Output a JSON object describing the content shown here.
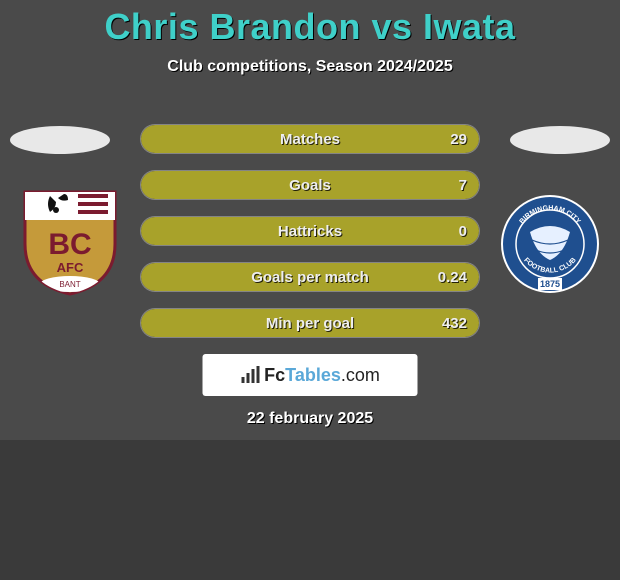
{
  "title": "Chris Brandon vs Iwata",
  "title_color": "#3fd0c9",
  "subtitle": "Club competitions, Season 2024/2025",
  "date": "22 february 2025",
  "background_color": "#4a4a4a",
  "bar_fill_color": "#a8a22a",
  "stats": [
    {
      "label": "Matches",
      "value": "29",
      "fill_pct": 100
    },
    {
      "label": "Goals",
      "value": "7",
      "fill_pct": 100
    },
    {
      "label": "Hattricks",
      "value": "0",
      "fill_pct": 100
    },
    {
      "label": "Goals per match",
      "value": "0.24",
      "fill_pct": 100
    },
    {
      "label": "Min per goal",
      "value": "432",
      "fill_pct": 100
    }
  ],
  "logo": {
    "fc": "Fc",
    "tables": "Tables",
    "dotcom": ".com"
  },
  "left_club": {
    "name": "Bradford City AFC",
    "shield_color": "#c59a3a",
    "accent_color": "#7b1b2f",
    "initials": "BC",
    "sub": "AFC"
  },
  "right_club": {
    "name": "Birmingham City FC",
    "circle_color": "#1f4f8f",
    "globe_color": "#e6f0ff",
    "text": "BIRMINGHAM CITY",
    "text2": "FOOTBALL CLUB",
    "year": "1875"
  }
}
